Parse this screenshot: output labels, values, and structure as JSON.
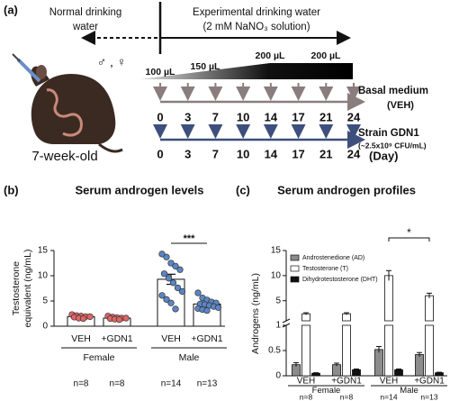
{
  "panel_a": {
    "label": "(a)",
    "normal_water": [
      "Normal drinking",
      "water"
    ],
    "experimental_water": [
      "Experimental drinking water",
      "(2 mM NaNO₃ solution)"
    ],
    "doses": [
      "100 µL",
      "150 µL",
      "200 µL",
      "200 µL"
    ],
    "sex": "♂ , ♀",
    "age": "7-week-old",
    "groups": [
      {
        "name": "Basal medium",
        "detail": "(VEH)",
        "color": "#8a7d7d",
        "days": [
          "0",
          "3",
          "7",
          "10",
          "14",
          "17",
          "21",
          "24"
        ]
      },
      {
        "name": "Strain GDN1",
        "detail": "(~2.5x10⁹ CFU/mL)",
        "color": "#3d4f7c",
        "days": [
          "0",
          "3",
          "7",
          "10",
          "14",
          "17",
          "21",
          "24"
        ]
      }
    ],
    "day_unit": "(Day)"
  },
  "chart_data": [
    {
      "type": "bar_scatter",
      "panel": "(b)",
      "title": "Serum androgen levels",
      "ylabel": [
        "Testosterone",
        "equivalent (ng/mL)"
      ],
      "categories": [
        "VEH",
        "+GDN1",
        "VEH",
        "+GDN1"
      ],
      "groups": [
        "Female",
        "Male"
      ],
      "n_labels": [
        "n=8",
        "n=8",
        "n=14",
        "n=13"
      ],
      "values": [
        1.9,
        1.6,
        9.3,
        4.4
      ],
      "errors": [
        0.2,
        0.15,
        1.0,
        0.4
      ],
      "color": "#ffffff",
      "points": [
        [
          2.3,
          2.1,
          2.0,
          1.9,
          1.9,
          1.8,
          1.6,
          1.5
        ],
        [
          2.0,
          1.8,
          1.7,
          1.6,
          1.6,
          1.5,
          1.4,
          1.3
        ],
        [
          14.3,
          13.7,
          12.5,
          11.9,
          11.2,
          10.4,
          9.5,
          8.6,
          7.6,
          6.9,
          6.1,
          5.3,
          4.6,
          3.4
        ],
        [
          6.6,
          5.6,
          5.2,
          4.8,
          4.6,
          4.4,
          4.3,
          4.1,
          3.9,
          3.7,
          3.5,
          3.3,
          3.1
        ]
      ],
      "point_colors": [
        "#e06666",
        "#e06666",
        "#5b86c5",
        "#5b86c5"
      ],
      "ylim": [
        0,
        15
      ],
      "yticks": [
        0,
        5,
        10,
        15
      ],
      "significance": [
        {
          "between": [
            2,
            3
          ],
          "label": "***"
        }
      ]
    },
    {
      "type": "grouped_bar_broken_axis",
      "panel": "(c)",
      "title": "Serum androgen profiles",
      "ylabel": "Androgens (ng/mL)",
      "categories": [
        "VEH",
        "+GDN1",
        "VEH",
        "+GDN1"
      ],
      "groups": [
        "Female",
        "Male"
      ],
      "n_labels": [
        "n=8",
        "n=8",
        "n=14",
        "n=13"
      ],
      "series": [
        {
          "name": "Androstenedione (AD)",
          "color": "#8c8c8c",
          "values": [
            0.22,
            0.22,
            0.52,
            0.42
          ],
          "errors": [
            0.04,
            0.03,
            0.06,
            0.04
          ]
        },
        {
          "name": "Testosterone (T)",
          "color": "#ffffff",
          "values": [
            2.4,
            2.4,
            10.0,
            6.0
          ],
          "errors": [
            0.2,
            0.2,
            1.0,
            0.5
          ]
        },
        {
          "name": "Dihydrotestosterone (DHT)",
          "color": "#111111",
          "values": [
            0.05,
            0.12,
            0.12,
            0.06
          ],
          "errors": [
            0.01,
            0.015,
            0.015,
            0.01
          ]
        }
      ],
      "ylim": [
        0,
        1
      ],
      "yticks": [
        0,
        0.5,
        1
      ],
      "ylim_upper": [
        1,
        15
      ],
      "yticks_upper": [
        5,
        10,
        15
      ],
      "significance": [
        {
          "between": [
            2,
            3
          ],
          "series": 1,
          "label": "*"
        }
      ]
    }
  ]
}
